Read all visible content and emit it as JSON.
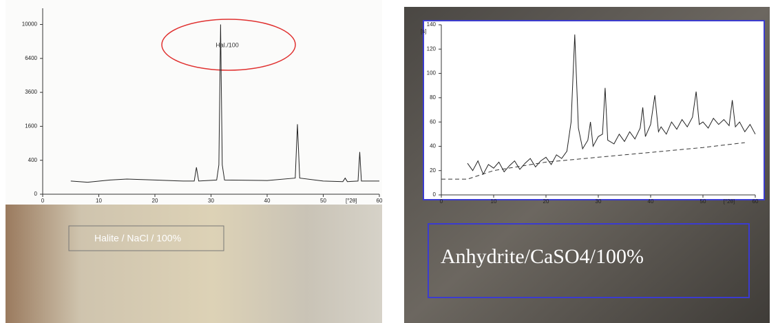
{
  "chart_data": [
    {
      "type": "line",
      "yscale": "sqrt",
      "xlim": [
        0,
        60
      ],
      "xticks": [
        0,
        10,
        20,
        30,
        40,
        50,
        60
      ],
      "ylim": [
        0,
        12000
      ],
      "yticks": [
        0,
        400,
        1600,
        3600,
        6400,
        10000
      ],
      "x_label": "[°2θ]",
      "annotation": "Hal./100",
      "caption": "Halite / NaCl / 100%",
      "series": [
        {
          "color": "#222222",
          "style": "solid",
          "x": [
            5,
            8,
            12,
            15,
            20,
            25,
            27,
            27.4,
            27.8,
            31,
            31.4,
            31.7,
            32,
            32.4,
            40,
            45,
            45.4,
            45.8,
            50,
            53.5,
            53.9,
            54.3,
            56.2,
            56.5,
            56.8,
            60
          ],
          "values": [
            60,
            50,
            70,
            80,
            70,
            60,
            60,
            250,
            60,
            70,
            300,
            10000,
            300,
            70,
            65,
            90,
            1700,
            90,
            60,
            55,
            90,
            55,
            60,
            620,
            60,
            60
          ]
        }
      ]
    },
    {
      "type": "line",
      "yscale": "linear",
      "xlim": [
        0,
        60
      ],
      "xticks": [
        0,
        10,
        20,
        30,
        40,
        50,
        60
      ],
      "ylim": [
        0,
        140
      ],
      "yticks": [
        0,
        20,
        40,
        60,
        80,
        100,
        120,
        140
      ],
      "x_label": "[°2θ]",
      "y_label": "[s]",
      "caption": "Anhydrite/CaSO4/100%",
      "series": [
        {
          "color": "#222222",
          "style": "solid",
          "x": [
            5,
            6,
            7,
            8,
            9,
            10,
            11,
            12,
            13,
            14,
            15,
            16,
            17,
            18,
            19,
            20,
            21,
            22,
            23,
            24,
            24.8,
            25.5,
            26.2,
            27,
            28,
            28.5,
            29,
            30,
            30.8,
            31.3,
            31.8,
            33,
            34,
            35,
            36,
            37,
            38,
            38.5,
            39,
            40,
            40.8,
            41.5,
            42,
            43,
            44,
            45,
            46,
            47,
            48,
            48.7,
            49.3,
            50,
            51,
            52,
            53,
            54,
            55,
            55.6,
            56.2,
            57,
            58,
            59,
            60
          ],
          "values": [
            26,
            20,
            28,
            17,
            25,
            22,
            27,
            19,
            24,
            28,
            21,
            26,
            30,
            23,
            28,
            31,
            25,
            33,
            30,
            36,
            60,
            132,
            55,
            38,
            45,
            60,
            40,
            48,
            50,
            88,
            45,
            42,
            50,
            44,
            52,
            46,
            55,
            72,
            48,
            58,
            82,
            52,
            56,
            50,
            60,
            54,
            62,
            56,
            64,
            85,
            58,
            60,
            55,
            63,
            58,
            62,
            57,
            78,
            56,
            60,
            52,
            58,
            50
          ]
        },
        {
          "color": "#333333",
          "style": "dashed",
          "x": [
            0,
            5,
            10,
            20,
            30,
            40,
            50,
            58
          ],
          "values": [
            13,
            13,
            20,
            27,
            31,
            35,
            39,
            43
          ]
        }
      ]
    }
  ]
}
